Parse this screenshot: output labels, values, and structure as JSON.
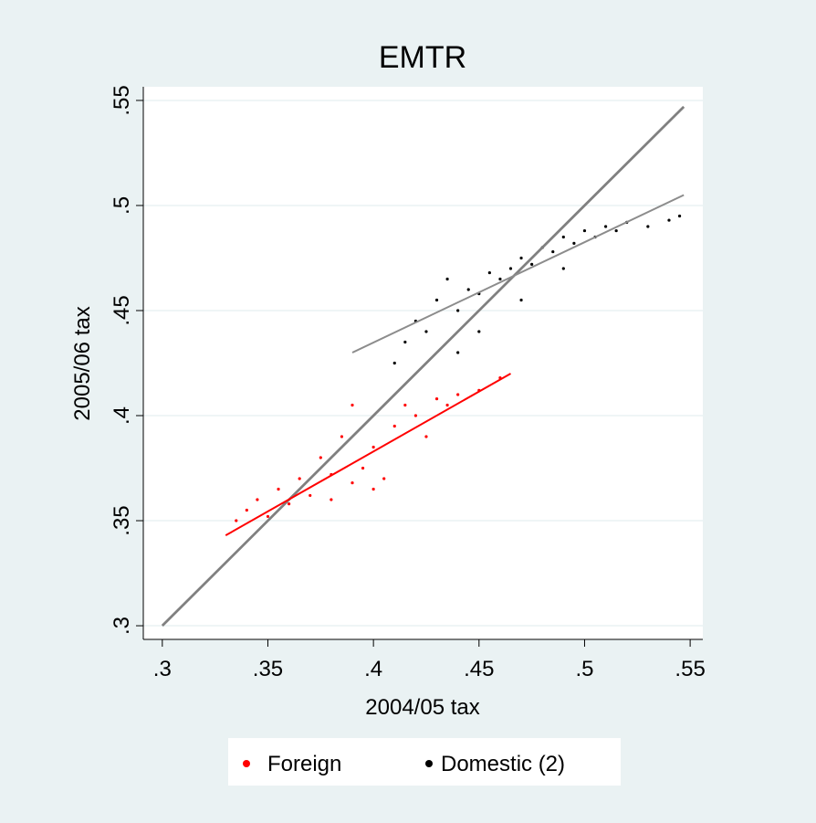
{
  "chart_data": {
    "type": "scatter",
    "title": "EMTR",
    "x_label": "2004/05 tax",
    "y_label": "2005/06 tax",
    "xlim": [
      0.291,
      0.556
    ],
    "ylim": [
      0.2935,
      0.5565
    ],
    "xticks": [
      {
        "value": 0.3,
        "label": ".3"
      },
      {
        "value": 0.35,
        "label": ".35"
      },
      {
        "value": 0.4,
        "label": ".4"
      },
      {
        "value": 0.45,
        "label": ".45"
      },
      {
        "value": 0.5,
        "label": ".5"
      },
      {
        "value": 0.55,
        "label": ".55"
      }
    ],
    "yticks": [
      {
        "value": 0.3,
        "label": ".3"
      },
      {
        "value": 0.35,
        "label": ".35"
      },
      {
        "value": 0.4,
        "label": ".4"
      },
      {
        "value": 0.45,
        "label": ".45"
      },
      {
        "value": 0.5,
        "label": ".5"
      },
      {
        "value": 0.55,
        "label": ".55"
      }
    ],
    "grid": true,
    "legend": "bottom",
    "series": [
      {
        "name": "Foreign",
        "color": "#ff0000",
        "x": [
          0.335,
          0.34,
          0.345,
          0.35,
          0.355,
          0.36,
          0.365,
          0.37,
          0.375,
          0.38,
          0.385,
          0.39,
          0.395,
          0.4,
          0.405,
          0.41,
          0.415,
          0.42,
          0.425,
          0.43,
          0.435,
          0.44,
          0.45,
          0.46,
          0.39,
          0.38,
          0.4
        ],
        "values": [
          0.35,
          0.355,
          0.36,
          0.352,
          0.365,
          0.358,
          0.37,
          0.362,
          0.38,
          0.372,
          0.39,
          0.368,
          0.375,
          0.385,
          0.37,
          0.395,
          0.405,
          0.4,
          0.39,
          0.408,
          0.405,
          0.41,
          0.412,
          0.418,
          0.405,
          0.36,
          0.365
        ]
      },
      {
        "name": "Domestic (2)",
        "color": "#000000",
        "x": [
          0.41,
          0.415,
          0.42,
          0.425,
          0.43,
          0.435,
          0.44,
          0.445,
          0.45,
          0.455,
          0.46,
          0.465,
          0.47,
          0.475,
          0.48,
          0.485,
          0.49,
          0.495,
          0.5,
          0.505,
          0.51,
          0.515,
          0.52,
          0.53,
          0.54,
          0.545,
          0.44,
          0.45,
          0.47,
          0.49
        ],
        "values": [
          0.425,
          0.435,
          0.445,
          0.44,
          0.455,
          0.465,
          0.45,
          0.46,
          0.458,
          0.468,
          0.465,
          0.47,
          0.475,
          0.472,
          0.48,
          0.478,
          0.485,
          0.482,
          0.488,
          0.485,
          0.49,
          0.488,
          0.492,
          0.49,
          0.493,
          0.495,
          0.43,
          0.44,
          0.455,
          0.47
        ]
      }
    ],
    "lines": [
      {
        "color": "#808080",
        "x": [
          0.3,
          0.547
        ],
        "values": [
          0.3,
          0.547
        ]
      },
      {
        "color": "#8c8c8c",
        "x": [
          0.39,
          0.547
        ],
        "values": [
          0.43,
          0.505
        ]
      },
      {
        "color": "#ff0000",
        "x": [
          0.33,
          0.465
        ],
        "values": [
          0.343,
          0.42
        ]
      }
    ]
  }
}
